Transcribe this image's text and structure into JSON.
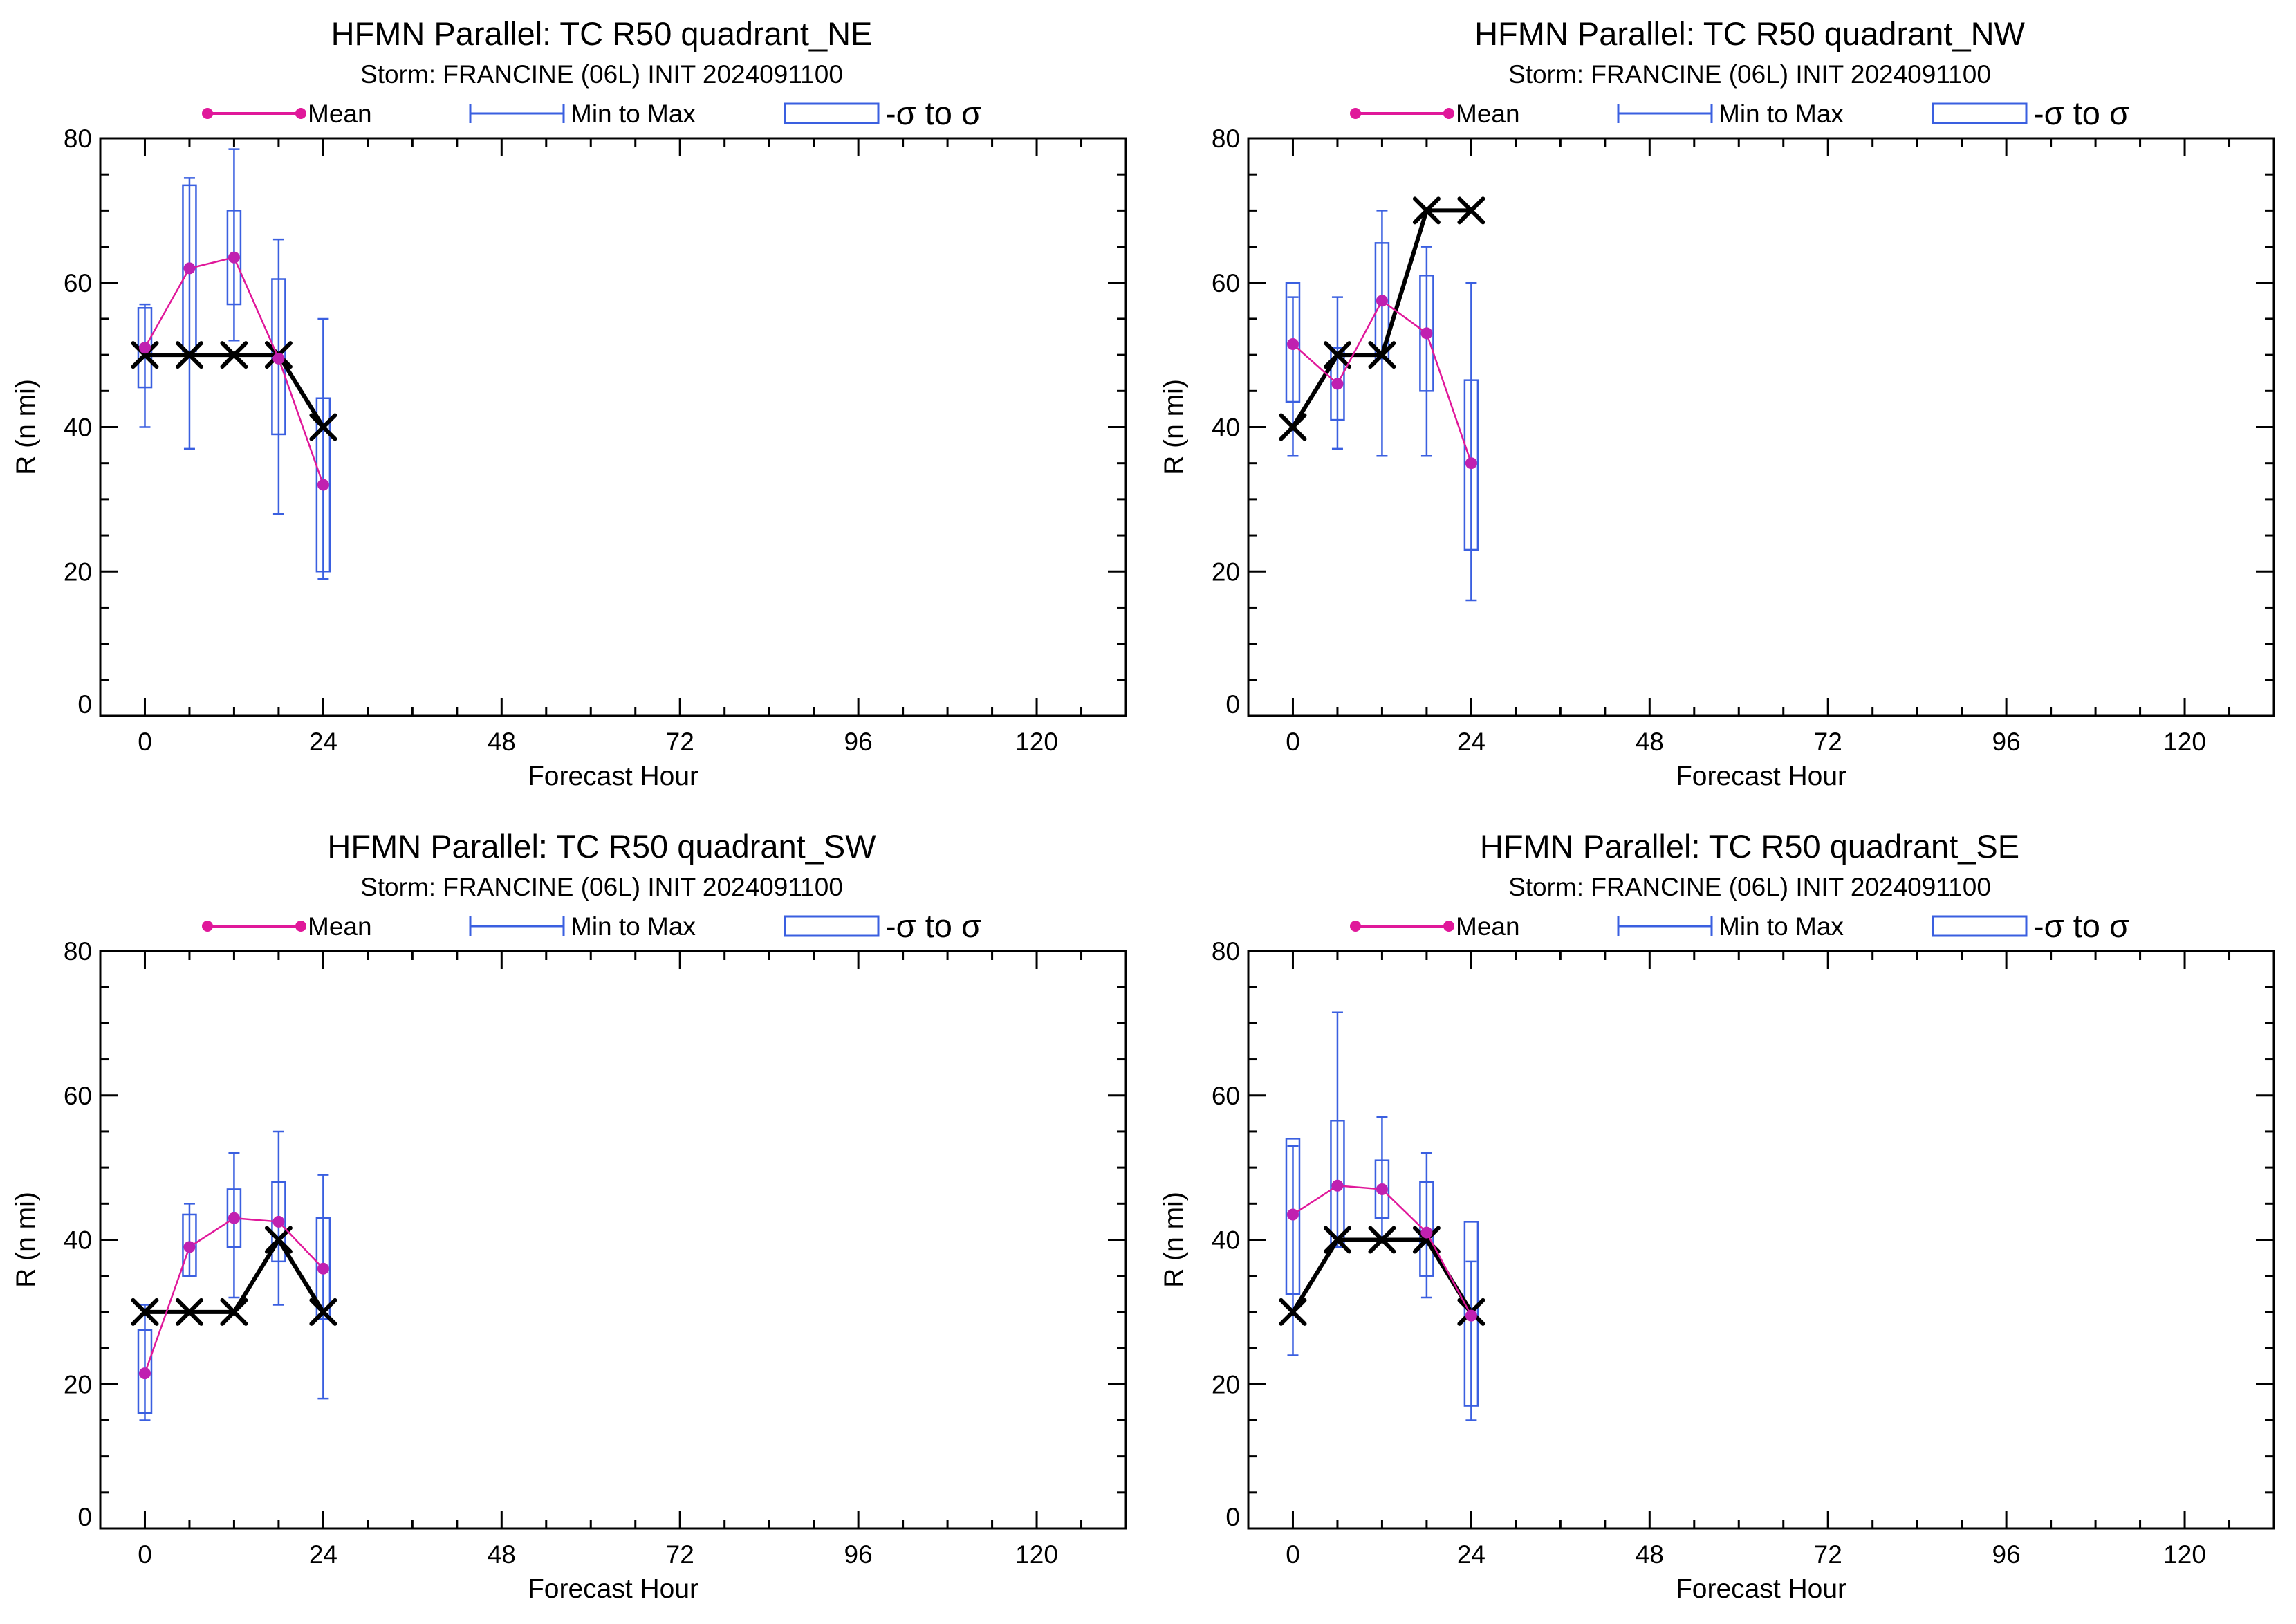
{
  "legend": {
    "mean": "Mean",
    "minmax": "Min to Max",
    "sigma": "-σ to σ"
  },
  "colors": {
    "mean": "#e0189a",
    "mean_marker": "#c020b0",
    "minmax": "#3a5fe0",
    "sigma": "#3a5fe0",
    "best_track": "#000000"
  },
  "chart_data": [
    {
      "type": "box",
      "title": "HFMN Parallel: TC  R50 quadrant_NE",
      "subtitle": "Storm: FRANCINE (06L) INIT 2024091100",
      "xlabel": "Forecast Hour",
      "ylabel": "R (n mi)",
      "xlim": [
        -6,
        132
      ],
      "ylim": [
        0,
        80
      ],
      "xticks": [
        0,
        24,
        48,
        72,
        96,
        120
      ],
      "yticks": [
        0,
        20,
        40,
        60,
        80
      ],
      "x": [
        0,
        6,
        12,
        18,
        24
      ],
      "mean": [
        51,
        62,
        63.5,
        49.5,
        32
      ],
      "min": [
        40,
        37,
        52,
        28,
        19
      ],
      "max": [
        57,
        74.5,
        78.5,
        66,
        55
      ],
      "sigma_low": [
        45.5,
        50.5,
        57,
        39,
        20
      ],
      "sigma_high": [
        56.5,
        73.5,
        70,
        60.5,
        44
      ],
      "best_track": [
        50,
        50,
        50,
        50,
        40
      ]
    },
    {
      "type": "box",
      "title": "HFMN Parallel: TC  R50 quadrant_NW",
      "subtitle": "Storm: FRANCINE (06L) INIT 2024091100",
      "xlabel": "Forecast Hour",
      "ylabel": "R (n mi)",
      "xlim": [
        -6,
        132
      ],
      "ylim": [
        0,
        80
      ],
      "xticks": [
        0,
        24,
        48,
        72,
        96,
        120
      ],
      "yticks": [
        0,
        20,
        40,
        60,
        80
      ],
      "x": [
        0,
        6,
        12,
        18,
        24
      ],
      "mean": [
        51.5,
        46,
        57.5,
        53,
        35
      ],
      "min": [
        36,
        37,
        36,
        36,
        16
      ],
      "max": [
        58,
        58,
        70,
        65,
        60
      ],
      "sigma_low": [
        43.5,
        41,
        49.5,
        45,
        23
      ],
      "sigma_high": [
        60,
        51,
        65.5,
        61,
        46.5
      ],
      "best_track": [
        40,
        50,
        50,
        70,
        70
      ]
    },
    {
      "type": "box",
      "title": "HFMN Parallel: TC  R50 quadrant_SW",
      "subtitle": "Storm: FRANCINE (06L) INIT 2024091100",
      "xlabel": "Forecast Hour",
      "ylabel": "R (n mi)",
      "xlim": [
        -6,
        132
      ],
      "ylim": [
        0,
        80
      ],
      "xticks": [
        0,
        24,
        48,
        72,
        96,
        120
      ],
      "yticks": [
        0,
        20,
        40,
        60,
        80
      ],
      "x": [
        0,
        6,
        12,
        18,
        24
      ],
      "mean": [
        21.5,
        39,
        43,
        42.5,
        36
      ],
      "min": [
        15,
        35,
        32,
        31,
        18
      ],
      "max": [
        31,
        45,
        52,
        55,
        49
      ],
      "sigma_low": [
        16,
        35,
        39,
        37,
        29
      ],
      "sigma_high": [
        27.5,
        43.5,
        47,
        48,
        43
      ],
      "best_track": [
        30,
        30,
        30,
        40,
        30
      ]
    },
    {
      "type": "box",
      "title": "HFMN Parallel: TC  R50 quadrant_SE",
      "subtitle": "Storm: FRANCINE (06L) INIT 2024091100",
      "xlabel": "Forecast Hour",
      "ylabel": "R (n mi)",
      "xlim": [
        -6,
        132
      ],
      "ylim": [
        0,
        80
      ],
      "xticks": [
        0,
        24,
        48,
        72,
        96,
        120
      ],
      "yticks": [
        0,
        20,
        40,
        60,
        80
      ],
      "x": [
        0,
        6,
        12,
        18,
        24
      ],
      "mean": [
        43.5,
        47.5,
        47,
        41,
        29.5
      ],
      "min": [
        24,
        39,
        40,
        32,
        15
      ],
      "max": [
        53,
        71.5,
        57,
        52,
        37
      ],
      "sigma_low": [
        32.5,
        39,
        43,
        35,
        17
      ],
      "sigma_high": [
        54,
        56.5,
        51,
        48,
        42.5
      ],
      "best_track": [
        30,
        40,
        40,
        40,
        30
      ]
    }
  ]
}
